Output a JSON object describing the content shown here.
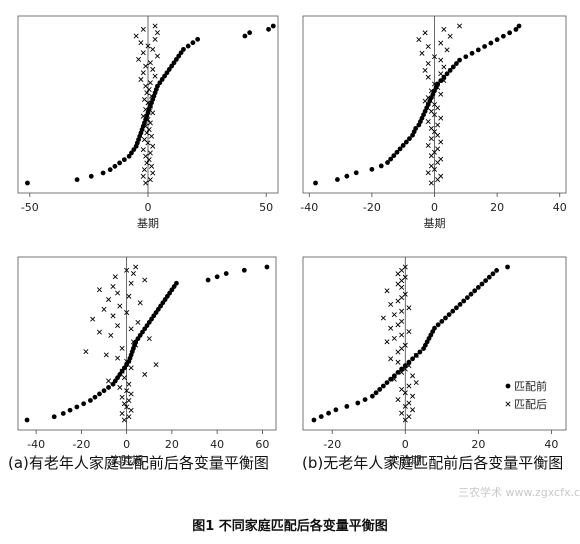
{
  "figure_caption": "图1 不同家庭匹配后各变量平衡图",
  "watermark": "三农学术 www.zgxcfx.com",
  "chart_data": [
    {
      "type": "scatter",
      "xlabel": "基期",
      "xlim": [
        -55,
        55
      ],
      "xticks": [
        "-50",
        "0",
        "50"
      ],
      "xtick_values": [
        -50,
        0,
        50
      ],
      "subcaption": "",
      "series": [
        {
          "marker": "dot",
          "x": [
            -51,
            -30,
            -24,
            -19,
            -16,
            -14,
            -12,
            -10,
            -8,
            -7,
            -6,
            -5,
            -4.5,
            -4,
            -3.5,
            -3,
            -2.5,
            -2,
            -1.5,
            -1,
            -0.5,
            0,
            0.5,
            1,
            1.5,
            2,
            2.5,
            3,
            3.5,
            4,
            5,
            6,
            7,
            8,
            9,
            10,
            11,
            12,
            13,
            14,
            15,
            17,
            19,
            21,
            41,
            43,
            51,
            53
          ],
          "y": [
            1,
            2,
            3,
            4,
            5,
            6,
            7,
            8,
            9,
            10,
            11,
            12,
            13,
            14,
            15,
            16,
            17,
            18,
            19,
            20,
            21,
            22,
            23,
            24,
            25,
            26,
            27,
            28,
            29,
            30,
            31,
            32,
            33,
            34,
            35,
            36,
            37,
            38,
            39,
            40,
            41,
            42,
            43,
            44,
            45,
            46,
            47,
            48
          ]
        },
        {
          "marker": "cross",
          "x": [
            -1,
            1,
            -2,
            2,
            -1.5,
            1.5,
            -0.5,
            0.5,
            -1,
            1,
            -2,
            2,
            0,
            -1.5,
            1.5,
            -0.5,
            0.5,
            -1,
            1,
            0,
            -2,
            2,
            -1,
            1,
            0,
            -1.5,
            1.5,
            -0.5,
            0.5,
            -1,
            1,
            -3,
            3,
            -2,
            2,
            -1,
            1,
            -4,
            4,
            -2,
            2,
            0,
            -3,
            3,
            -5,
            4,
            -2,
            3
          ],
          "y": [
            1,
            2,
            3,
            4,
            5,
            6,
            7,
            8,
            9,
            10,
            11,
            12,
            13,
            14,
            15,
            16,
            17,
            18,
            19,
            20,
            21,
            22,
            23,
            24,
            25,
            26,
            27,
            28,
            29,
            30,
            31,
            32,
            33,
            34,
            35,
            36,
            37,
            38,
            39,
            40,
            41,
            42,
            43,
            44,
            45,
            46,
            47,
            48
          ]
        }
      ]
    },
    {
      "type": "scatter",
      "xlabel": "基期",
      "xlim": [
        -42,
        42
      ],
      "xticks": [
        "-40",
        "-20",
        "0",
        "20",
        "40"
      ],
      "xtick_values": [
        -40,
        -20,
        0,
        20,
        40
      ],
      "subcaption": "",
      "series": [
        {
          "marker": "dot",
          "x": [
            -38,
            -31,
            -28,
            -25,
            -20,
            -17,
            -15,
            -14,
            -13,
            -12,
            -11,
            -10,
            -9,
            -8,
            -7,
            -6.5,
            -6,
            -5,
            -4.5,
            -4,
            -3.5,
            -3,
            -2.5,
            -2,
            -1.5,
            -1,
            -0.5,
            0,
            0.5,
            1,
            2,
            3,
            4,
            5,
            6,
            7,
            8,
            10,
            12,
            14,
            16,
            18,
            20,
            22,
            24,
            26,
            27
          ],
          "y": [
            1,
            2,
            3,
            4,
            5,
            6,
            7,
            8,
            9,
            10,
            11,
            12,
            13,
            14,
            15,
            16,
            17,
            18,
            19,
            20,
            21,
            22,
            23,
            24,
            25,
            26,
            27,
            28,
            29,
            30,
            31,
            32,
            33,
            34,
            35,
            36,
            37,
            38,
            39,
            40,
            41,
            42,
            43,
            44,
            45,
            46,
            47
          ]
        },
        {
          "marker": "cross",
          "x": [
            -1,
            1,
            2,
            -2,
            0,
            -1,
            1,
            2,
            -1,
            0,
            1,
            -2,
            2,
            -1,
            1,
            0,
            -1,
            1,
            -2,
            2,
            0,
            -1,
            1,
            0,
            -3,
            -2,
            2,
            -1,
            1,
            0,
            3,
            -2,
            2,
            -3,
            3,
            -2,
            2,
            0,
            -4,
            4,
            -2,
            2,
            -5,
            5,
            -3,
            3,
            8
          ],
          "y": [
            1,
            2,
            3,
            4,
            5,
            6,
            7,
            8,
            9,
            10,
            11,
            12,
            13,
            14,
            15,
            16,
            17,
            18,
            19,
            20,
            21,
            22,
            23,
            24,
            25,
            26,
            27,
            28,
            29,
            30,
            31,
            32,
            33,
            34,
            35,
            36,
            37,
            38,
            39,
            40,
            41,
            42,
            43,
            44,
            45,
            46,
            47
          ]
        }
      ]
    },
    {
      "type": "scatter",
      "xlabel": "实验期",
      "xlim": [
        -48,
        66
      ],
      "xticks": [
        "-40",
        "-20",
        "0",
        "20",
        "40",
        "60"
      ],
      "xtick_values": [
        -40,
        -20,
        0,
        20,
        40,
        60
      ],
      "subcaption": "(a)有老年人家庭匹配前后各变量平衡图",
      "series": [
        {
          "marker": "dot",
          "x": [
            -44,
            -32,
            -28,
            -25,
            -22,
            -19,
            -16,
            -14,
            -12,
            -10,
            -8,
            -6,
            -5,
            -4,
            -3,
            -2,
            -1,
            0,
            1,
            1.5,
            2,
            2.5,
            3,
            3.5,
            4,
            5,
            6,
            7,
            8,
            9,
            10,
            11,
            12,
            13,
            14,
            15,
            16,
            17,
            18,
            19,
            20,
            21,
            22,
            36,
            40,
            44,
            52,
            62
          ],
          "y": [
            1,
            2,
            3,
            4,
            5,
            6,
            7,
            8,
            9,
            10,
            11,
            12,
            13,
            14,
            15,
            16,
            17,
            18,
            19,
            20,
            21,
            22,
            23,
            24,
            25,
            26,
            27,
            28,
            29,
            30,
            31,
            32,
            33,
            34,
            35,
            36,
            37,
            38,
            39,
            40,
            41,
            42,
            43,
            44,
            45,
            46,
            47,
            48
          ]
        },
        {
          "marker": "cross",
          "x": [
            -1,
            1,
            -2,
            2,
            0,
            -1,
            1,
            -2,
            2,
            0,
            -3,
            1,
            -8,
            -1,
            8,
            -2,
            2,
            13,
            0,
            -4,
            -9,
            -18,
            -2,
            4,
            3,
            10,
            -7,
            -12,
            2,
            -4,
            5,
            -15,
            -6,
            0,
            -10,
            -3,
            6,
            -8,
            1,
            -4,
            -12,
            -6,
            2,
            8,
            -5,
            3,
            0,
            4
          ],
          "y": [
            1,
            2,
            3,
            4,
            5,
            6,
            7,
            8,
            9,
            10,
            11,
            12,
            13,
            14,
            15,
            16,
            17,
            18,
            19,
            20,
            21,
            22,
            23,
            24,
            25,
            26,
            27,
            28,
            29,
            30,
            31,
            32,
            33,
            34,
            35,
            36,
            37,
            38,
            39,
            40,
            41,
            42,
            43,
            44,
            45,
            46,
            47,
            48
          ]
        }
      ]
    },
    {
      "type": "scatter",
      "xlabel": "实验期",
      "xlim": [
        -28,
        44
      ],
      "xticks": [
        "-20",
        "0",
        "20",
        "40"
      ],
      "xtick_values": [
        -20,
        0,
        20,
        40
      ],
      "subcaption": "(b)无老年人家庭匹配前后各变量平衡图",
      "legend": {
        "position": "bottom-right",
        "entries": [
          "匹配前",
          "匹配后"
        ]
      },
      "series": [
        {
          "name": "匹配前",
          "marker": "dot",
          "x": [
            -25,
            -23,
            -21,
            -19,
            -16,
            -13,
            -11,
            -9,
            -8,
            -7,
            -6,
            -5,
            -4,
            -3,
            -2,
            -1,
            0,
            1,
            2,
            3,
            4,
            5,
            5.5,
            6,
            6.5,
            7,
            7.5,
            8,
            9,
            10,
            11,
            12,
            13,
            14,
            15,
            16,
            17,
            18,
            19,
            20,
            21,
            22,
            23,
            24,
            25,
            28
          ],
          "y": [
            1,
            2,
            3,
            4,
            5,
            6,
            7,
            8,
            9,
            10,
            11,
            12,
            13,
            14,
            15,
            16,
            17,
            18,
            19,
            20,
            21,
            22,
            23,
            24,
            25,
            26,
            27,
            28,
            29,
            30,
            31,
            32,
            33,
            34,
            35,
            36,
            37,
            38,
            39,
            40,
            41,
            42,
            43,
            44,
            45,
            46
          ]
        },
        {
          "name": "匹配后",
          "marker": "cross",
          "x": [
            0,
            1,
            -1,
            2,
            0,
            1,
            -2,
            2,
            0,
            -1,
            1,
            3,
            -3,
            2,
            -1,
            0,
            1,
            -2,
            -4,
            3,
            -2,
            -1,
            0,
            -5,
            -3,
            -1,
            1,
            -4,
            -2,
            -1,
            -6,
            -3,
            -1,
            1,
            -4,
            -2,
            -1,
            0,
            -5,
            -1,
            -2,
            -1,
            0,
            -2,
            -1,
            0
          ],
          "y": [
            1,
            2,
            3,
            4,
            5,
            6,
            7,
            8,
            9,
            10,
            11,
            12,
            13,
            14,
            15,
            16,
            17,
            18,
            19,
            20,
            21,
            22,
            23,
            24,
            25,
            26,
            27,
            28,
            29,
            30,
            31,
            32,
            33,
            34,
            35,
            36,
            37,
            38,
            39,
            40,
            41,
            42,
            43,
            44,
            45,
            46
          ]
        }
      ]
    }
  ]
}
